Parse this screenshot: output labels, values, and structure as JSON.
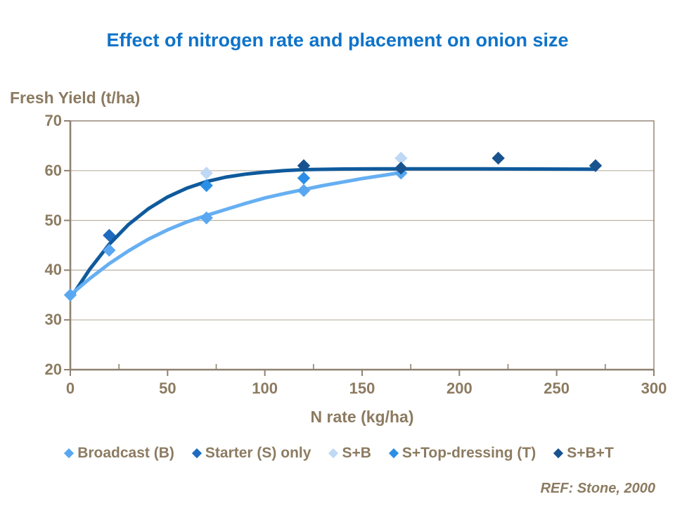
{
  "page": {
    "title": "Effect of nitrogen rate and placement on onion size",
    "reference": "REF: Stone, 2000"
  },
  "colors": {
    "title_text": "#0E73C9",
    "axis_text": "#8C7B61",
    "frame": "#8F8070",
    "gridline": "#BBB2A4",
    "background": "#FFFFFF"
  },
  "chart_data": {
    "type": "scatter",
    "title": "Effect of nitrogen rate and placement on onion size",
    "xlabel": "N rate (kg/ha)",
    "ylabel": "Fresh Yield (t/ha)",
    "xlim": [
      0,
      300
    ],
    "ylim": [
      20,
      70
    ],
    "x_ticks": [
      0,
      50,
      100,
      150,
      200,
      250,
      300
    ],
    "x_minor_tick_step": 25,
    "y_ticks": [
      20,
      30,
      40,
      50,
      60,
      70
    ],
    "grid": "horizontal gridlines at 30,40,50,60",
    "legend_position": "bottom",
    "marker": "diamond",
    "series": [
      {
        "name": "Broadcast (B)",
        "color": "#59A7F0",
        "points": [
          [
            0,
            35
          ],
          [
            20,
            44
          ],
          [
            70,
            50.5
          ],
          [
            120,
            56
          ],
          [
            170,
            59.5
          ]
        ]
      },
      {
        "name": "Starter (S) only",
        "color": "#1F6BC0",
        "points": [
          [
            20,
            47
          ]
        ]
      },
      {
        "name": "S+B",
        "color": "#BFD9F5",
        "points": [
          [
            70,
            59.5
          ],
          [
            170,
            62.5
          ]
        ]
      },
      {
        "name": "S+Top-dressing (T)",
        "color": "#2B8FE8",
        "points": [
          [
            70,
            57
          ],
          [
            120,
            58.5
          ]
        ]
      },
      {
        "name": "S+B+T",
        "color": "#19538F",
        "points": [
          [
            120,
            61
          ],
          [
            170,
            60.5
          ],
          [
            220,
            62.5
          ],
          [
            270,
            61
          ]
        ]
      }
    ],
    "trendlines": [
      {
        "name": "starter-placement fit",
        "color": "#0F5A9C",
        "width": 5,
        "points": [
          [
            0,
            34.3
          ],
          [
            10,
            40.2
          ],
          [
            20,
            45.2
          ],
          [
            30,
            49.2
          ],
          [
            40,
            52.3
          ],
          [
            50,
            54.7
          ],
          [
            60,
            56.5
          ],
          [
            70,
            57.8
          ],
          [
            80,
            58.7
          ],
          [
            90,
            59.3
          ],
          [
            100,
            59.7
          ],
          [
            110,
            60.0
          ],
          [
            120,
            60.2
          ],
          [
            140,
            60.33
          ],
          [
            160,
            60.37
          ],
          [
            180,
            60.37
          ],
          [
            210,
            60.35
          ],
          [
            240,
            60.32
          ],
          [
            270,
            60.3
          ]
        ]
      },
      {
        "name": "broadcast fit",
        "color": "#66AFF2",
        "width": 5,
        "points": [
          [
            0,
            35
          ],
          [
            10,
            38.3
          ],
          [
            20,
            41.3
          ],
          [
            30,
            43.9
          ],
          [
            40,
            46.2
          ],
          [
            50,
            48.1
          ],
          [
            60,
            49.7
          ],
          [
            70,
            51.0
          ],
          [
            80,
            52.2
          ],
          [
            90,
            53.4
          ],
          [
            100,
            54.5
          ],
          [
            110,
            55.4
          ],
          [
            120,
            56.2
          ],
          [
            130,
            57.0
          ],
          [
            140,
            57.7
          ],
          [
            150,
            58.4
          ],
          [
            160,
            59.0
          ],
          [
            170,
            59.6
          ]
        ]
      }
    ]
  }
}
